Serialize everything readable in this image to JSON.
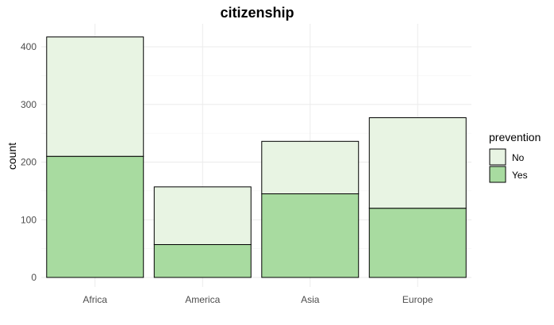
{
  "chart_data": {
    "type": "bar",
    "stacked": true,
    "title": "citizenship",
    "xlabel": "",
    "ylabel": "count",
    "categories": [
      "Africa",
      "America",
      "Asia",
      "Europe"
    ],
    "series": [
      {
        "name": "No",
        "values": [
          207,
          100,
          91,
          157
        ],
        "color": "#e8f4e3"
      },
      {
        "name": "Yes",
        "values": [
          210,
          57,
          145,
          120
        ],
        "color": "#a8dba0"
      }
    ],
    "ylim": [
      0,
      420
    ],
    "yticks": [
      "0",
      "100",
      "200",
      "300",
      "400"
    ],
    "grid": true,
    "legend": {
      "title": "prevention",
      "position": "right",
      "items": [
        "No",
        "Yes"
      ]
    }
  }
}
